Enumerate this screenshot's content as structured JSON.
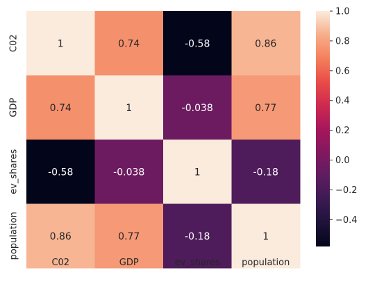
{
  "chart_data": {
    "type": "heatmap",
    "title": "",
    "xlabel": "",
    "ylabel": "",
    "x_categories": [
      "C02",
      "GDP",
      "ev_shares",
      "population"
    ],
    "y_categories": [
      "C02",
      "GDP",
      "ev_shares",
      "population"
    ],
    "values": [
      [
        1,
        0.74,
        -0.58,
        0.86
      ],
      [
        0.74,
        1,
        -0.038,
        0.77
      ],
      [
        -0.58,
        -0.038,
        1,
        -0.18
      ],
      [
        0.86,
        0.77,
        -0.18,
        1
      ]
    ],
    "annotations": [
      [
        "1",
        "0.74",
        "-0.58",
        "0.86"
      ],
      [
        "0.74",
        "1",
        "-0.038",
        "0.77"
      ],
      [
        "-0.58",
        "-0.038",
        "1",
        "-0.18"
      ],
      [
        "0.86",
        "0.77",
        "-0.18",
        "1"
      ]
    ],
    "colorbar": {
      "colormap": "rocket",
      "range": [
        -0.58,
        1.0
      ],
      "ticks": [
        1.0,
        0.8,
        0.6,
        0.4,
        0.2,
        0.0,
        -0.2,
        -0.4
      ],
      "tick_labels": [
        "1.0",
        "0.8",
        "0.6",
        "0.4",
        "0.2",
        "0.0",
        "−0.2",
        "−0.4"
      ],
      "placement": "right"
    },
    "grid": false
  }
}
